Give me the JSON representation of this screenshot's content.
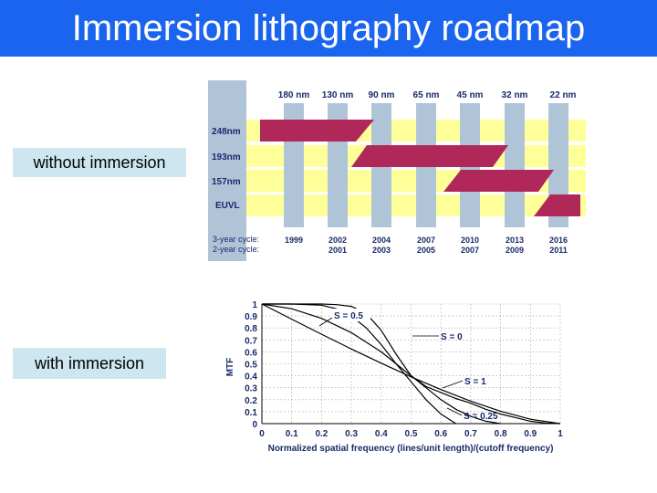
{
  "slide": {
    "title": "Immersion lithography roadmap",
    "label_without": "without immersion",
    "label_with": "with immersion"
  },
  "roadmap": {
    "nodes": [
      "180 nm",
      "130 nm",
      "90 nm",
      "65 nm",
      "45 nm",
      "32 nm",
      "22 nm"
    ],
    "rows": [
      "248nm",
      "193nm",
      "157nm",
      "EUVL"
    ],
    "cycle_labels": [
      "3-year cycle:",
      "2-year cycle:"
    ],
    "years_3": [
      "1999",
      "2002",
      "2004",
      "2007",
      "2010",
      "2013",
      "2016"
    ],
    "years_2": [
      "",
      "2001",
      "2003",
      "2005",
      "2007",
      "2009",
      "2011"
    ],
    "colors": {
      "row_band": "#ffff99",
      "column": "#b0c4d8",
      "bar": "#b0285a"
    }
  },
  "chart_data": {
    "type": "line",
    "title": "",
    "xlabel": "Normalized spatial frequency (lines/unit length)/(cutoff frequency)",
    "ylabel": "MTF",
    "xlim": [
      0,
      1
    ],
    "ylim": [
      0,
      1
    ],
    "x_ticks": [
      "0",
      "0.1",
      "0.2",
      "0.3",
      "0.4",
      "0.5",
      "0.6",
      "0.7",
      "0.8",
      "0.9",
      "1"
    ],
    "y_ticks": [
      "0",
      "0.1",
      "0.2",
      "0.3",
      "0.4",
      "0.5",
      "0.6",
      "0.7",
      "0.8",
      "0.9",
      "1"
    ],
    "series": [
      {
        "name": "S = 0",
        "x": [
          0,
          0.1,
          0.2,
          0.3,
          0.4,
          0.5,
          0.6,
          0.7,
          0.8,
          0.9,
          1
        ],
        "y": [
          1,
          0.873,
          0.747,
          0.624,
          0.505,
          0.391,
          0.285,
          0.188,
          0.104,
          0.037,
          0
        ]
      },
      {
        "name": "S = 0.25",
        "x": [
          0,
          0.1,
          0.2,
          0.3,
          0.4,
          0.45,
          0.5,
          0.55,
          0.6,
          0.65,
          0.7,
          0.75,
          0.8
        ],
        "y": [
          1,
          0.96,
          0.88,
          0.76,
          0.6,
          0.5,
          0.4,
          0.3,
          0.2,
          0.12,
          0.06,
          0.02,
          0
        ]
      },
      {
        "name": "S = 0.5",
        "x": [
          0,
          0.1,
          0.2,
          0.25,
          0.3,
          0.35,
          0.4,
          0.45,
          0.5,
          0.55,
          0.6,
          0.65
        ],
        "y": [
          1,
          1,
          0.99,
          0.96,
          0.9,
          0.8,
          0.66,
          0.5,
          0.35,
          0.2,
          0.08,
          0
        ]
      },
      {
        "name": "S = 1",
        "x": [
          0,
          0.2,
          0.25,
          0.3,
          0.35,
          0.4,
          0.45,
          0.5,
          0.55,
          0.6,
          0.65,
          0.7,
          0.75,
          0.8,
          0.85,
          0.9,
          0.95,
          1
        ],
        "y": [
          1,
          1,
          0.995,
          0.98,
          0.92,
          0.78,
          0.58,
          0.4,
          0.31,
          0.26,
          0.21,
          0.17,
          0.12,
          0.08,
          0.05,
          0.02,
          0.005,
          0
        ]
      }
    ],
    "annotations": [
      "S = 0.5",
      "S = 0",
      "S = 1",
      "S = 0.25"
    ]
  }
}
